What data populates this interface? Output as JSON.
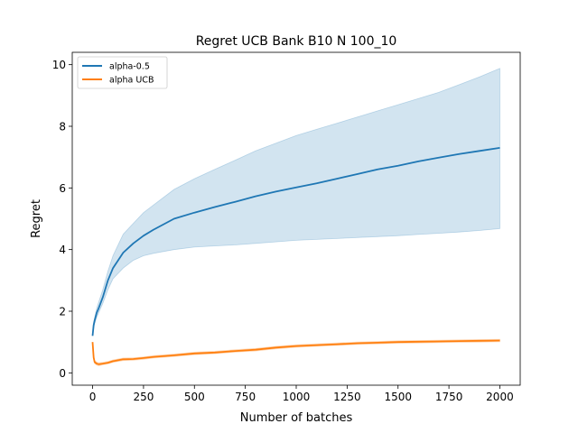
{
  "chart_data": {
    "type": "line",
    "title": "Regret UCB Bank B10 N 100_10",
    "xlabel": "Number of batches",
    "ylabel": "Regret",
    "xlim": [
      -100,
      2100
    ],
    "ylim": [
      -0.4,
      10.4
    ],
    "xticks": [
      0,
      250,
      500,
      750,
      1000,
      1250,
      1500,
      1750,
      2000
    ],
    "xtick_labels": [
      "0",
      "250",
      "500",
      "750",
      "1000",
      "1250",
      "1500",
      "1750",
      "2000"
    ],
    "yticks": [
      0,
      2,
      4,
      6,
      8,
      10
    ],
    "ytick_labels": [
      "0",
      "2",
      "4",
      "6",
      "8",
      "10"
    ],
    "grid": false,
    "legend_position": "upper-left",
    "series": [
      {
        "name": "alpha-0.5",
        "color": "#1f77b4",
        "x": [
          0,
          5,
          10,
          20,
          30,
          50,
          75,
          100,
          150,
          200,
          250,
          300,
          400,
          500,
          600,
          700,
          800,
          900,
          1000,
          1100,
          1200,
          1300,
          1400,
          1500,
          1600,
          1700,
          1800,
          1900,
          2000
        ],
        "y": [
          1.2,
          1.55,
          1.7,
          1.95,
          2.1,
          2.45,
          3.0,
          3.4,
          3.9,
          4.2,
          4.45,
          4.65,
          5.0,
          5.2,
          5.38,
          5.55,
          5.73,
          5.88,
          6.02,
          6.15,
          6.3,
          6.45,
          6.6,
          6.72,
          6.86,
          6.98,
          7.1,
          7.2,
          7.3
        ],
        "lower": [
          1.2,
          1.45,
          1.6,
          1.8,
          1.95,
          2.25,
          2.7,
          3.05,
          3.4,
          3.65,
          3.8,
          3.88,
          4.0,
          4.08,
          4.12,
          4.15,
          4.2,
          4.25,
          4.3,
          4.33,
          4.36,
          4.39,
          4.42,
          4.45,
          4.49,
          4.53,
          4.57,
          4.62,
          4.68
        ],
        "upper": [
          1.2,
          1.65,
          1.8,
          2.1,
          2.3,
          2.7,
          3.3,
          3.8,
          4.5,
          4.85,
          5.2,
          5.45,
          5.95,
          6.3,
          6.6,
          6.9,
          7.2,
          7.45,
          7.7,
          7.9,
          8.1,
          8.3,
          8.5,
          8.7,
          8.9,
          9.1,
          9.35,
          9.6,
          9.88
        ]
      },
      {
        "name": "alpha UCB",
        "color": "#ff7f0e",
        "x": [
          0,
          5,
          10,
          20,
          30,
          50,
          75,
          100,
          150,
          200,
          250,
          300,
          400,
          500,
          600,
          700,
          800,
          900,
          1000,
          1100,
          1200,
          1300,
          1400,
          1500,
          1600,
          1700,
          1800,
          1900,
          2000
        ],
        "y": [
          1.0,
          0.5,
          0.35,
          0.3,
          0.28,
          0.3,
          0.33,
          0.38,
          0.44,
          0.45,
          0.48,
          0.52,
          0.57,
          0.63,
          0.66,
          0.71,
          0.75,
          0.82,
          0.87,
          0.9,
          0.93,
          0.96,
          0.98,
          1.0,
          1.01,
          1.02,
          1.03,
          1.04,
          1.05
        ],
        "lower": [
          1.0,
          0.45,
          0.3,
          0.25,
          0.23,
          0.26,
          0.29,
          0.34,
          0.4,
          0.41,
          0.44,
          0.48,
          0.53,
          0.59,
          0.62,
          0.67,
          0.71,
          0.78,
          0.83,
          0.86,
          0.89,
          0.92,
          0.94,
          0.96,
          0.97,
          0.98,
          0.99,
          1.0,
          1.01
        ],
        "upper": [
          1.0,
          0.55,
          0.4,
          0.35,
          0.33,
          0.34,
          0.37,
          0.42,
          0.48,
          0.49,
          0.52,
          0.56,
          0.61,
          0.67,
          0.7,
          0.75,
          0.79,
          0.86,
          0.91,
          0.94,
          0.97,
          1.0,
          1.02,
          1.04,
          1.05,
          1.06,
          1.07,
          1.08,
          1.09
        ]
      }
    ]
  }
}
